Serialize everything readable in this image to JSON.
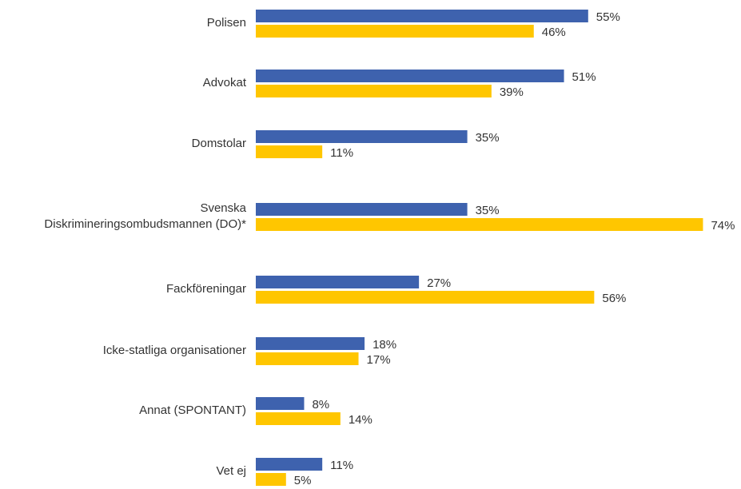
{
  "chart_data": {
    "type": "hbar",
    "categories": [
      "Polisen",
      "Advokat",
      "Domstolar",
      "Svenska\nDiskrimineringsombudsmannen (DO)*",
      "Fackföreningar",
      "Icke-statliga organisationer",
      "Annat (SPONTANT)",
      "Vet ej"
    ],
    "series": [
      {
        "color": "#3e62ae",
        "values": [
          55,
          51,
          35,
          35,
          27,
          18,
          8,
          11
        ],
        "value_labels": [
          "55%",
          "51%",
          "35%",
          "35%",
          "27%",
          "18%",
          "8%",
          "11%"
        ]
      },
      {
        "color": "#ffc600",
        "values": [
          46,
          39,
          11,
          74,
          56,
          17,
          14,
          5
        ],
        "value_labels": [
          "46%",
          "39%",
          "11%",
          "74%",
          "56%",
          "17%",
          "14%",
          "5%"
        ]
      }
    ]
  }
}
